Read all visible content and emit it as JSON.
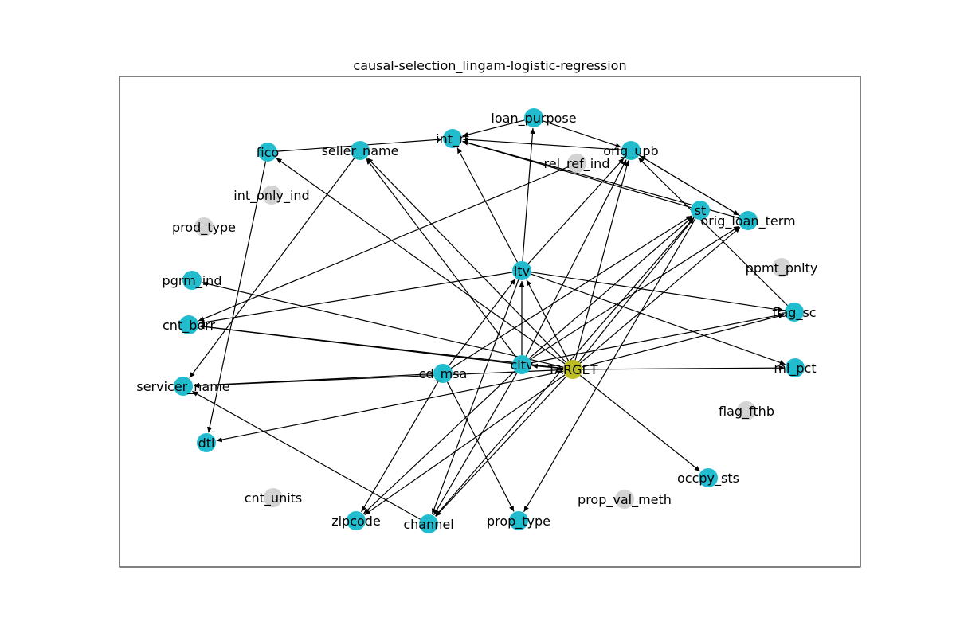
{
  "figure": {
    "title": "causal-selection_lingam-logistic-regression"
  },
  "colors": {
    "selected": "#22bccf",
    "unselected": "#d3d3d3",
    "target": "#bcbd22",
    "edge": "#000000",
    "frame": "#000000"
  },
  "nodes": [
    {
      "id": "TARGET",
      "label": "TARGET",
      "status": "target"
    },
    {
      "id": "loan_purpose",
      "label": "loan_purpose",
      "status": "selected"
    },
    {
      "id": "int_rt",
      "label": "int_rt",
      "status": "selected"
    },
    {
      "id": "orig_upb",
      "label": "orig_upb",
      "status": "selected"
    },
    {
      "id": "seller_name",
      "label": "seller_name",
      "status": "selected"
    },
    {
      "id": "fico",
      "label": "fico",
      "status": "selected"
    },
    {
      "id": "rel_ref_ind",
      "label": "rel_ref_ind",
      "status": "unselected"
    },
    {
      "id": "int_only_ind",
      "label": "int_only_ind",
      "status": "unselected"
    },
    {
      "id": "prod_type",
      "label": "prod_type",
      "status": "unselected"
    },
    {
      "id": "st",
      "label": "st",
      "status": "selected"
    },
    {
      "id": "orig_loan_term",
      "label": "orig_loan_term",
      "status": "selected"
    },
    {
      "id": "ppmt_pnlty",
      "label": "ppmt_pnlty",
      "status": "unselected"
    },
    {
      "id": "pgrm_ind",
      "label": "pgrm_ind",
      "status": "selected"
    },
    {
      "id": "ltv",
      "label": "ltv",
      "status": "selected"
    },
    {
      "id": "flag_sc",
      "label": "flag_sc",
      "status": "selected"
    },
    {
      "id": "cnt_borr",
      "label": "cnt_borr",
      "status": "selected"
    },
    {
      "id": "cltv",
      "label": "cltv",
      "status": "selected"
    },
    {
      "id": "cd_msa",
      "label": "cd_msa",
      "status": "selected"
    },
    {
      "id": "mi_pct",
      "label": "mi_pct",
      "status": "selected"
    },
    {
      "id": "servicer_name",
      "label": "servicer_name",
      "status": "selected"
    },
    {
      "id": "flag_fthb",
      "label": "flag_fthb",
      "status": "unselected"
    },
    {
      "id": "dti",
      "label": "dti",
      "status": "selected"
    },
    {
      "id": "occpy_sts",
      "label": "occpy_sts",
      "status": "selected"
    },
    {
      "id": "cnt_units",
      "label": "cnt_units",
      "status": "unselected"
    },
    {
      "id": "prop_val_meth",
      "label": "prop_val_meth",
      "status": "unselected"
    },
    {
      "id": "zipcode",
      "label": "zipcode",
      "status": "selected"
    },
    {
      "id": "channel",
      "label": "channel",
      "status": "selected"
    },
    {
      "id": "prop_type",
      "label": "prop_type",
      "status": "selected"
    }
  ],
  "edges": [
    {
      "from": "TARGET",
      "to": "cltv"
    },
    {
      "from": "TARGET",
      "to": "ltv"
    },
    {
      "from": "TARGET",
      "to": "orig_upb"
    },
    {
      "from": "TARGET",
      "to": "st"
    },
    {
      "from": "TARGET",
      "to": "orig_loan_term"
    },
    {
      "from": "TARGET",
      "to": "flag_sc"
    },
    {
      "from": "TARGET",
      "to": "mi_pct"
    },
    {
      "from": "TARGET",
      "to": "occpy_sts"
    },
    {
      "from": "TARGET",
      "to": "seller_name"
    },
    {
      "from": "TARGET",
      "to": "fico"
    },
    {
      "from": "TARGET",
      "to": "pgrm_ind"
    },
    {
      "from": "TARGET",
      "to": "cnt_borr"
    },
    {
      "from": "TARGET",
      "to": "servicer_name"
    },
    {
      "from": "TARGET",
      "to": "dti"
    },
    {
      "from": "TARGET",
      "to": "zipcode"
    },
    {
      "from": "TARGET",
      "to": "channel"
    },
    {
      "from": "cltv",
      "to": "ltv"
    },
    {
      "from": "cltv",
      "to": "orig_upb"
    },
    {
      "from": "cltv",
      "to": "st"
    },
    {
      "from": "cltv",
      "to": "orig_loan_term"
    },
    {
      "from": "cltv",
      "to": "flag_sc"
    },
    {
      "from": "cltv",
      "to": "seller_name"
    },
    {
      "from": "cltv",
      "to": "cnt_borr"
    },
    {
      "from": "cltv",
      "to": "zipcode"
    },
    {
      "from": "cltv",
      "to": "channel"
    },
    {
      "from": "ltv",
      "to": "loan_purpose"
    },
    {
      "from": "ltv",
      "to": "int_rt"
    },
    {
      "from": "ltv",
      "to": "orig_upb"
    },
    {
      "from": "ltv",
      "to": "flag_sc"
    },
    {
      "from": "ltv",
      "to": "mi_pct"
    },
    {
      "from": "ltv",
      "to": "cnt_borr"
    },
    {
      "from": "ltv",
      "to": "channel"
    },
    {
      "from": "cd_msa",
      "to": "ltv"
    },
    {
      "from": "cd_msa",
      "to": "st"
    },
    {
      "from": "cd_msa",
      "to": "servicer_name"
    },
    {
      "from": "cd_msa",
      "to": "zipcode"
    },
    {
      "from": "cd_msa",
      "to": "prop_type"
    },
    {
      "from": "fico",
      "to": "int_rt"
    },
    {
      "from": "fico",
      "to": "dti"
    },
    {
      "from": "loan_purpose",
      "to": "int_rt"
    },
    {
      "from": "loan_purpose",
      "to": "orig_upb"
    },
    {
      "from": "orig_loan_term",
      "to": "int_rt"
    },
    {
      "from": "orig_loan_term",
      "to": "orig_upb"
    },
    {
      "from": "st",
      "to": "int_rt"
    },
    {
      "from": "st",
      "to": "channel"
    },
    {
      "from": "st",
      "to": "prop_type"
    },
    {
      "from": "flag_sc",
      "to": "orig_upb"
    },
    {
      "from": "orig_upb",
      "to": "int_rt"
    },
    {
      "from": "orig_upb",
      "to": "orig_loan_term"
    },
    {
      "from": "rel_ref_ind",
      "to": "cnt_borr"
    },
    {
      "from": "seller_name",
      "to": "servicer_name"
    },
    {
      "from": "channel",
      "to": "servicer_name"
    }
  ]
}
